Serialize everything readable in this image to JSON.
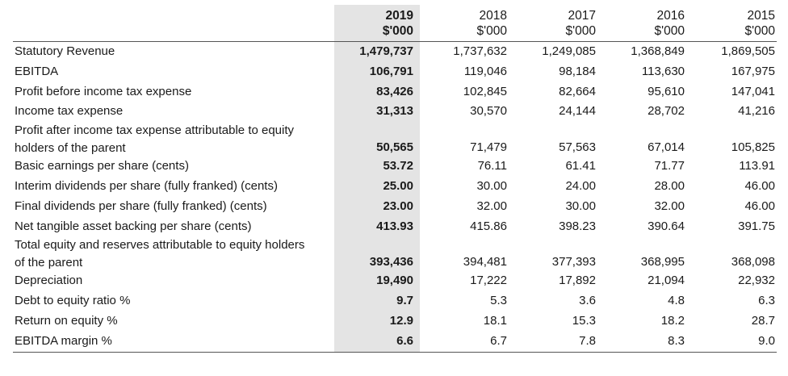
{
  "columns": [
    {
      "year": "2019",
      "unit": "$'000"
    },
    {
      "year": "2018",
      "unit": "$'000"
    },
    {
      "year": "2017",
      "unit": "$'000"
    },
    {
      "year": "2016",
      "unit": "$'000"
    },
    {
      "year": "2015",
      "unit": "$'000"
    }
  ],
  "rows": [
    {
      "label": "Statutory Revenue",
      "values": [
        "1,479,737",
        "1,737,632",
        "1,249,085",
        "1,368,849",
        "1,869,505"
      ]
    },
    {
      "label": "EBITDA",
      "values": [
        "106,791",
        "119,046",
        "98,184",
        "113,630",
        "167,975"
      ]
    },
    {
      "label": "Profit before income tax expense",
      "values": [
        "83,426",
        "102,845",
        "82,664",
        "95,610",
        "147,041"
      ]
    },
    {
      "label": "Income tax expense",
      "values": [
        "31,313",
        "30,570",
        "24,144",
        "28,702",
        "41,216"
      ]
    },
    {
      "label_line1": "Profit after income tax expense attributable to equity",
      "label_line2": "holders of the parent",
      "values": [
        "50,565",
        "71,479",
        "57,563",
        "67,014",
        "105,825"
      ]
    },
    {
      "label": "Basic earnings per share (cents)",
      "values": [
        "53.72",
        "76.11",
        "61.41",
        "71.77",
        "113.91"
      ]
    },
    {
      "label": "Interim dividends per share (fully franked) (cents)",
      "values": [
        "25.00",
        "30.00",
        "24.00",
        "28.00",
        "46.00"
      ]
    },
    {
      "label": "Final dividends per share (fully franked) (cents)",
      "values": [
        "23.00",
        "32.00",
        "30.00",
        "32.00",
        "46.00"
      ]
    },
    {
      "label": "Net tangible asset backing per share (cents)",
      "values": [
        "413.93",
        "415.86",
        "398.23",
        "390.64",
        "391.75"
      ]
    },
    {
      "label_line1": "Total equity and reserves attributable to equity holders",
      "label_line2": "of the parent",
      "values": [
        "393,436",
        "394,481",
        "377,393",
        "368,995",
        "368,098"
      ]
    },
    {
      "label": "Depreciation",
      "values": [
        "19,490",
        "17,222",
        "17,892",
        "21,094",
        "22,932"
      ]
    },
    {
      "label": "Debt to equity ratio %",
      "values": [
        "9.7",
        "5.3",
        "3.6",
        "4.8",
        "6.3"
      ]
    },
    {
      "label": "Return on equity %",
      "values": [
        "12.9",
        "18.1",
        "15.3",
        "18.2",
        "28.7"
      ]
    },
    {
      "label": "EBITDA margin %",
      "values": [
        "6.6",
        "6.7",
        "7.8",
        "8.3",
        "9.0"
      ]
    }
  ],
  "colors": {
    "highlight_column": "#e4e4e4",
    "rule": "#555555",
    "text": "#1a1a1a"
  }
}
